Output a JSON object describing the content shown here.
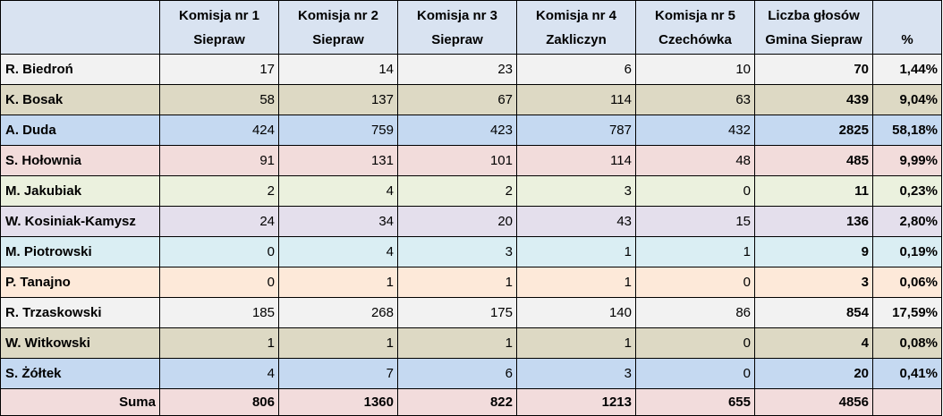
{
  "colors": {
    "header": "#d9e3f1",
    "row_1": "#f2f2f2",
    "row_2": "#ddd9c4",
    "row_3": "#c5d9f1",
    "row_4": "#f2dcdb",
    "row_5": "#ebf1de",
    "row_6": "#e4dfec",
    "row_7": "#daeef3",
    "row_8": "#fde9d9",
    "sum_row": "#f2dcdc",
    "grid_lines": "#000000"
  },
  "header": {
    "name": "",
    "k1": [
      "Komisja nr 1",
      "Siepraw"
    ],
    "k2": [
      "Komisja nr 2",
      "Siepraw"
    ],
    "k3": [
      "Komisja nr 3",
      "Siepraw"
    ],
    "k4": [
      "Komisja nr 4",
      "Zakliczyn"
    ],
    "k5": [
      "Komisja nr 5",
      "Czechówka"
    ],
    "total": [
      "Liczba głosów",
      "Gmina Siepraw"
    ],
    "pct": "%"
  },
  "rows": [
    {
      "name": "R. Biedroń",
      "k1": "17",
      "k2": "14",
      "k3": "23",
      "k4": "6",
      "k5": "10",
      "total": "70",
      "pct": "1,44%"
    },
    {
      "name": "K. Bosak",
      "k1": "58",
      "k2": "137",
      "k3": "67",
      "k4": "114",
      "k5": "63",
      "total": "439",
      "pct": "9,04%"
    },
    {
      "name": "A. Duda",
      "k1": "424",
      "k2": "759",
      "k3": "423",
      "k4": "787",
      "k5": "432",
      "total": "2825",
      "pct": "58,18%"
    },
    {
      "name": "S. Hołownia",
      "k1": "91",
      "k2": "131",
      "k3": "101",
      "k4": "114",
      "k5": "48",
      "total": "485",
      "pct": "9,99%"
    },
    {
      "name": "M. Jakubiak",
      "k1": "2",
      "k2": "4",
      "k3": "2",
      "k4": "3",
      "k5": "0",
      "total": "11",
      "pct": "0,23%"
    },
    {
      "name": "W. Kosiniak-Kamysz",
      "k1": "24",
      "k2": "34",
      "k3": "20",
      "k4": "43",
      "k5": "15",
      "total": "136",
      "pct": "2,80%"
    },
    {
      "name": "M. Piotrowski",
      "k1": "0",
      "k2": "4",
      "k3": "3",
      "k4": "1",
      "k5": "1",
      "total": "9",
      "pct": "0,19%"
    },
    {
      "name": "P. Tanajno",
      "k1": "0",
      "k2": "1",
      "k3": "1",
      "k4": "1",
      "k5": "0",
      "total": "3",
      "pct": "0,06%"
    },
    {
      "name": "R. Trzaskowski",
      "k1": "185",
      "k2": "268",
      "k3": "175",
      "k4": "140",
      "k5": "86",
      "total": "854",
      "pct": "17,59%"
    },
    {
      "name": "W. Witkowski",
      "k1": "1",
      "k2": "1",
      "k3": "1",
      "k4": "1",
      "k5": "0",
      "total": "4",
      "pct": "0,08%"
    },
    {
      "name": "S. Żółtek",
      "k1": "4",
      "k2": "7",
      "k3": "6",
      "k4": "3",
      "k5": "0",
      "total": "20",
      "pct": "0,41%"
    }
  ],
  "sum": {
    "label": "Suma",
    "k1": "806",
    "k2": "1360",
    "k3": "822",
    "k4": "1213",
    "k5": "655",
    "total": "4856",
    "pct": ""
  }
}
